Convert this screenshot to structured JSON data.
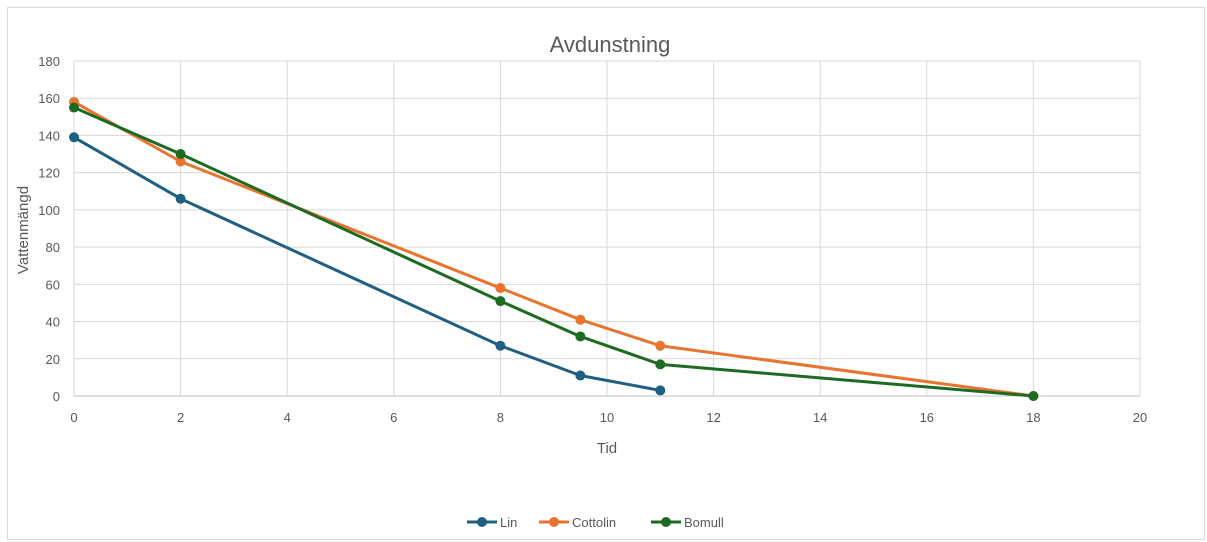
{
  "chart_data": {
    "type": "scatter",
    "title": "Avdunstning",
    "xlabel": "Tid",
    "ylabel": "Vattenmängd",
    "xlim": [
      0,
      20
    ],
    "ylim": [
      0,
      180
    ],
    "x_ticks": [
      0,
      2,
      4,
      6,
      8,
      10,
      12,
      14,
      16,
      18,
      20
    ],
    "y_ticks": [
      0,
      20,
      40,
      60,
      80,
      100,
      120,
      140,
      160,
      180
    ],
    "grid": true,
    "legend_position": "bottom",
    "series": [
      {
        "name": "Lin",
        "color": "#1f5f83",
        "x": [
          0,
          2,
          8,
          9.5,
          11
        ],
        "y": [
          139,
          106,
          27,
          11,
          3
        ]
      },
      {
        "name": "Cottolin",
        "color": "#e8742f",
        "x": [
          0,
          2,
          8,
          9.5,
          11,
          18
        ],
        "y": [
          158,
          126,
          58,
          41,
          27,
          0
        ]
      },
      {
        "name": "Bomull",
        "color": "#1d6b22",
        "x": [
          0,
          2,
          8,
          9.5,
          11,
          18
        ],
        "y": [
          155,
          130,
          51,
          32,
          17,
          0
        ]
      }
    ]
  }
}
